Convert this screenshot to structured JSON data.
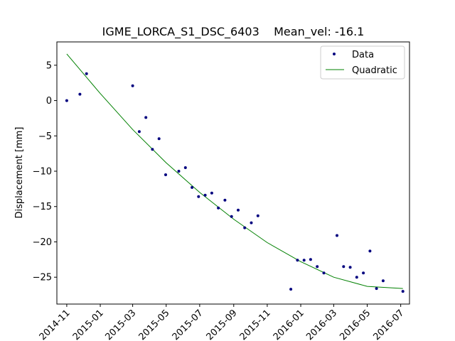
{
  "chart_data": {
    "type": "scatter",
    "title": "IGME_LORCA_S1_DSC_6403    Mean_vel: -16.1",
    "xlabel": "",
    "ylabel": "Displacement [mm]",
    "x_range": [
      "2014-10-14",
      "2016-07-17"
    ],
    "xlim": [
      "2014-10-14",
      "2016-07-17"
    ],
    "ylim": [
      -28.8,
      8.3
    ],
    "x_ticks": [
      "2014-11",
      "2015-01",
      "2015-03",
      "2015-05",
      "2015-07",
      "2015-09",
      "2015-11",
      "2016-01",
      "2016-03",
      "2016-05",
      "2016-07"
    ],
    "y_ticks": [
      5,
      0,
      -5,
      -10,
      -15,
      -20,
      -25
    ],
    "grid": false,
    "legend_position": "top-right",
    "series": [
      {
        "name": "Data",
        "type": "scatter",
        "color": "#00007f",
        "points": [
          {
            "x": "2014-11-01",
            "y": 0.0
          },
          {
            "x": "2014-11-25",
            "y": 0.9
          },
          {
            "x": "2014-12-07",
            "y": 3.8
          },
          {
            "x": "2015-03-01",
            "y": 2.1
          },
          {
            "x": "2015-03-13",
            "y": -4.4
          },
          {
            "x": "2015-03-25",
            "y": -2.4
          },
          {
            "x": "2015-04-06",
            "y": -6.9
          },
          {
            "x": "2015-04-18",
            "y": -5.4
          },
          {
            "x": "2015-04-30",
            "y": -10.5
          },
          {
            "x": "2015-05-24",
            "y": -10.0
          },
          {
            "x": "2015-06-05",
            "y": -9.5
          },
          {
            "x": "2015-06-17",
            "y": -12.3
          },
          {
            "x": "2015-06-29",
            "y": -13.6
          },
          {
            "x": "2015-07-11",
            "y": -13.4
          },
          {
            "x": "2015-07-23",
            "y": -13.1
          },
          {
            "x": "2015-08-04",
            "y": -15.2
          },
          {
            "x": "2015-08-16",
            "y": -14.1
          },
          {
            "x": "2015-08-28",
            "y": -16.4
          },
          {
            "x": "2015-09-09",
            "y": -15.5
          },
          {
            "x": "2015-09-21",
            "y": -18.0
          },
          {
            "x": "2015-10-03",
            "y": -17.3
          },
          {
            "x": "2015-10-15",
            "y": -16.3
          },
          {
            "x": "2015-12-14",
            "y": -26.7
          },
          {
            "x": "2015-12-26",
            "y": -22.6
          },
          {
            "x": "2016-01-07",
            "y": -22.6
          },
          {
            "x": "2016-01-19",
            "y": -22.5
          },
          {
            "x": "2016-01-31",
            "y": -23.5
          },
          {
            "x": "2016-02-12",
            "y": -24.4
          },
          {
            "x": "2016-03-07",
            "y": -19.1
          },
          {
            "x": "2016-03-19",
            "y": -23.5
          },
          {
            "x": "2016-03-31",
            "y": -23.6
          },
          {
            "x": "2016-04-12",
            "y": -25.0
          },
          {
            "x": "2016-04-24",
            "y": -24.4
          },
          {
            "x": "2016-05-06",
            "y": -21.3
          },
          {
            "x": "2016-05-18",
            "y": -26.6
          },
          {
            "x": "2016-05-30",
            "y": -25.5
          },
          {
            "x": "2016-07-05",
            "y": -27.0
          }
        ]
      },
      {
        "name": "Quadratic",
        "type": "line",
        "color": "#008000",
        "points": [
          {
            "x": "2014-11-01",
            "y": 6.6
          },
          {
            "x": "2015-01-01",
            "y": 1.0
          },
          {
            "x": "2015-03-01",
            "y": -4.1
          },
          {
            "x": "2015-05-01",
            "y": -8.8
          },
          {
            "x": "2015-07-01",
            "y": -13.0
          },
          {
            "x": "2015-09-01",
            "y": -16.8
          },
          {
            "x": "2015-11-01",
            "y": -20.1
          },
          {
            "x": "2016-01-01",
            "y": -22.8
          },
          {
            "x": "2016-03-01",
            "y": -25.0
          },
          {
            "x": "2016-05-01",
            "y": -26.3
          },
          {
            "x": "2016-07-05",
            "y": -26.6
          }
        ]
      }
    ]
  }
}
